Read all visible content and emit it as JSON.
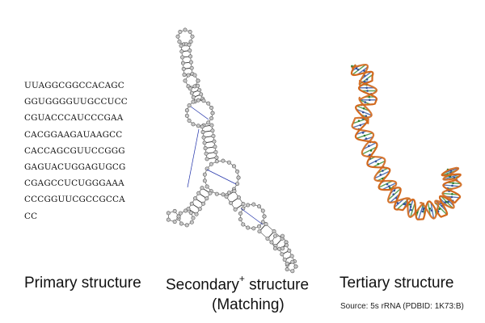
{
  "primary": {
    "sequence_lines": [
      "UUAGGCGGCCACAGC",
      "GGUGGGGUUGCCUCC",
      "CGUACCCAUCCCGAA",
      "CACGGAAGAUAAGCC",
      "CACCAGCGUUCCGGG",
      "GAGUACUGGAGUGCG",
      "CGAGCCUCUGGGAAA",
      "CCCGGUUCGCCGCCA",
      "CC"
    ],
    "label": "Primary structure"
  },
  "secondary": {
    "label_main": "Secondary",
    "label_sup": "+",
    "label_rest": " structure",
    "sublabel": "(Matching)"
  },
  "tertiary": {
    "label": "Tertiary structure",
    "source": "Source: 5s rRNA (PDBID: 1K73:B)"
  },
  "colors": {
    "backbone": "#d2691e",
    "base_green": "#3b8f3b",
    "base_blue": "#3a5fa8",
    "node": "#c8c8c8",
    "node_stroke": "#555555",
    "pairing_line": "#2233aa"
  }
}
